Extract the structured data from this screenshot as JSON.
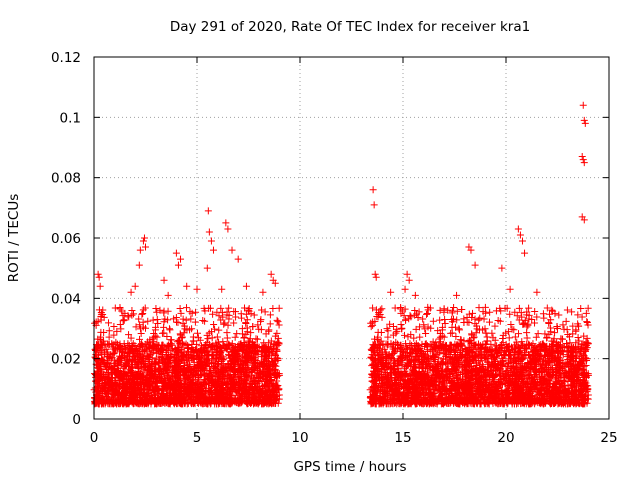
{
  "chart_data": {
    "type": "scatter",
    "title": "Day 291 of 2020, Rate Of TEC Index for receiver kra1",
    "xlabel": "GPS time / hours",
    "ylabel": "ROTI / TECUs",
    "xlim": [
      0,
      25
    ],
    "ylim": [
      0,
      0.12
    ],
    "x_ticks": [
      0,
      5,
      10,
      15,
      20,
      25
    ],
    "x_tick_labels": [
      "0",
      "5",
      "10",
      "15",
      "20",
      "25"
    ],
    "y_ticks": [
      0,
      0.02,
      0.04,
      0.06,
      0.08,
      0.1,
      0.12
    ],
    "y_tick_labels": [
      "0",
      "0.02",
      "0.04",
      "0.06",
      "0.08",
      "0.1",
      "0.12"
    ],
    "grid": true,
    "marker": "+",
    "color": "#ff0000",
    "series": [
      {
        "name": "ROTI",
        "observed_ranges_hours": [
          [
            0,
            9.0
          ],
          [
            13.4,
            24.0
          ]
        ],
        "typical_band": [
          0.005,
          0.025
        ],
        "points": [
          [
            0.2,
            0.048
          ],
          [
            0.25,
            0.047
          ],
          [
            0.3,
            0.044
          ],
          [
            0.35,
            0.034
          ],
          [
            1.5,
            0.035
          ],
          [
            1.8,
            0.042
          ],
          [
            2.0,
            0.044
          ],
          [
            2.2,
            0.051
          ],
          [
            2.25,
            0.056
          ],
          [
            2.4,
            0.059
          ],
          [
            2.45,
            0.06
          ],
          [
            2.5,
            0.057
          ],
          [
            3.4,
            0.046
          ],
          [
            3.6,
            0.041
          ],
          [
            4.0,
            0.055
          ],
          [
            4.1,
            0.051
          ],
          [
            4.2,
            0.053
          ],
          [
            4.5,
            0.044
          ],
          [
            5.0,
            0.043
          ],
          [
            5.5,
            0.05
          ],
          [
            5.55,
            0.069
          ],
          [
            5.6,
            0.062
          ],
          [
            5.7,
            0.059
          ],
          [
            5.8,
            0.056
          ],
          [
            6.2,
            0.043
          ],
          [
            6.4,
            0.065
          ],
          [
            6.5,
            0.063
          ],
          [
            6.7,
            0.056
          ],
          [
            7.0,
            0.053
          ],
          [
            7.4,
            0.044
          ],
          [
            8.2,
            0.042
          ],
          [
            8.6,
            0.048
          ],
          [
            8.7,
            0.046
          ],
          [
            8.8,
            0.045
          ],
          [
            13.55,
            0.076
          ],
          [
            13.6,
            0.071
          ],
          [
            13.65,
            0.048
          ],
          [
            13.7,
            0.047
          ],
          [
            14.4,
            0.042
          ],
          [
            14.9,
            0.035
          ],
          [
            15.1,
            0.043
          ],
          [
            15.2,
            0.048
          ],
          [
            15.3,
            0.046
          ],
          [
            15.6,
            0.041
          ],
          [
            16.2,
            0.037
          ],
          [
            16.8,
            0.036
          ],
          [
            17.6,
            0.041
          ],
          [
            18.2,
            0.057
          ],
          [
            18.3,
            0.056
          ],
          [
            18.5,
            0.051
          ],
          [
            19.0,
            0.037
          ],
          [
            19.8,
            0.05
          ],
          [
            20.2,
            0.043
          ],
          [
            20.6,
            0.063
          ],
          [
            20.7,
            0.061
          ],
          [
            20.8,
            0.059
          ],
          [
            20.9,
            0.055
          ],
          [
            21.5,
            0.042
          ],
          [
            22.5,
            0.03
          ],
          [
            23.0,
            0.028
          ],
          [
            23.5,
            0.027
          ],
          [
            23.75,
            0.104
          ],
          [
            23.8,
            0.099
          ],
          [
            23.85,
            0.098
          ],
          [
            23.7,
            0.087
          ],
          [
            23.75,
            0.086
          ],
          [
            23.8,
            0.085
          ],
          [
            23.7,
            0.067
          ],
          [
            23.8,
            0.066
          ],
          [
            23.9,
            0.035
          ],
          [
            23.95,
            0.032
          ]
        ]
      }
    ]
  }
}
